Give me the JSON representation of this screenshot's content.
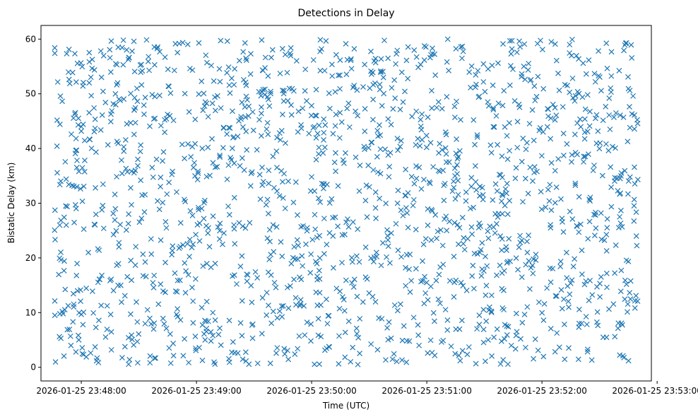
{
  "chart_data": {
    "type": "scatter",
    "title": "Detections in Delay",
    "xlabel": "Time (UTC)",
    "ylabel": "Bistatic Delay (km)",
    "x_start": "2026-01-25 23:47:46",
    "x_end": "2026-01-25 23:52:50",
    "xlim": [
      "2026-01-25 23:47:39",
      "2026-01-25 23:52:57"
    ],
    "ylim": [
      -2.5,
      62.5
    ],
    "x_ticks": [
      "2026-01-25 23:48:00",
      "2026-01-25 23:49:00",
      "2026-01-25 23:50:00",
      "2026-01-25 23:51:00",
      "2026-01-25 23:52:00",
      "2026-01-25 23:53:00"
    ],
    "y_ticks": [
      0,
      10,
      20,
      30,
      40,
      50,
      60
    ],
    "y_range": [
      0.5,
      60
    ],
    "marker": "x",
    "color": "#1f77b4",
    "point_count": 1700,
    "grid": false,
    "legend": "none"
  }
}
